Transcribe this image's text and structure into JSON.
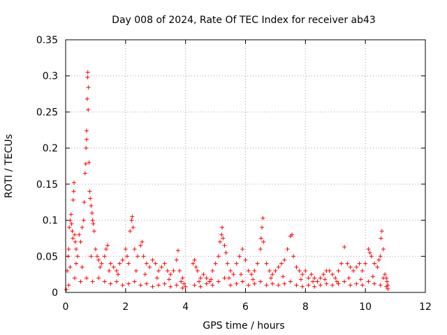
{
  "chart_data": {
    "type": "scatter",
    "title": "Day 008 of 2024, Rate Of TEC Index for receiver ab43",
    "xlabel": "GPS time / hours",
    "ylabel": "ROTI / TECUs",
    "xlim": [
      0,
      12
    ],
    "ylim": [
      0,
      0.35
    ],
    "grid": true,
    "marker": "+",
    "color": "#ff0000",
    "xticks": [
      {
        "value": 0,
        "label": "0"
      },
      {
        "value": 2,
        "label": "2"
      },
      {
        "value": 4,
        "label": "4"
      },
      {
        "value": 6,
        "label": "6"
      },
      {
        "value": 8,
        "label": "8"
      },
      {
        "value": 10,
        "label": "10"
      },
      {
        "value": 12,
        "label": "12"
      }
    ],
    "yticks": [
      {
        "value": 0,
        "label": "0"
      },
      {
        "value": 0.05,
        "label": "0.05"
      },
      {
        "value": 0.1,
        "label": "0.1"
      },
      {
        "value": 0.15,
        "label": "0.15"
      },
      {
        "value": 0.2,
        "label": "0.2"
      },
      {
        "value": 0.25,
        "label": "0.25"
      },
      {
        "value": 0.3,
        "label": "0.3"
      },
      {
        "value": 0.35,
        "label": "0.35"
      }
    ],
    "series": [
      {
        "name": "ROTI",
        "points": [
          [
            0.02,
            0.004
          ],
          [
            0.05,
            0.03
          ],
          [
            0.08,
            0.05
          ],
          [
            0.1,
            0.06
          ],
          [
            0.12,
            0.09
          ],
          [
            0.15,
            0.1
          ],
          [
            0.18,
            0.108
          ],
          [
            0.2,
            0.095
          ],
          [
            0.22,
            0.085
          ],
          [
            0.24,
            0.075
          ],
          [
            0.25,
            0.128
          ],
          [
            0.27,
            0.14
          ],
          [
            0.28,
            0.152
          ],
          [
            0.3,
            0.08
          ],
          [
            0.32,
            0.07
          ],
          [
            0.35,
            0.06
          ],
          [
            0.4,
            0.05
          ],
          [
            0.45,
            0.08
          ],
          [
            0.5,
            0.07
          ],
          [
            0.55,
            0.09
          ],
          [
            0.6,
            0.1
          ],
          [
            0.62,
            0.125
          ],
          [
            0.65,
            0.165
          ],
          [
            0.67,
            0.178
          ],
          [
            0.68,
            0.2
          ],
          [
            0.7,
            0.212
          ],
          [
            0.7,
            0.224
          ],
          [
            0.72,
            0.268
          ],
          [
            0.73,
            0.298
          ],
          [
            0.74,
            0.305
          ],
          [
            0.75,
            0.253
          ],
          [
            0.76,
            0.284
          ],
          [
            0.78,
            0.18
          ],
          [
            0.8,
            0.14
          ],
          [
            0.82,
            0.13
          ],
          [
            0.85,
            0.12
          ],
          [
            0.88,
            0.11
          ],
          [
            0.9,
            0.1
          ],
          [
            0.92,
            0.095
          ],
          [
            0.95,
            0.085
          ],
          [
            1.0,
            0.06
          ],
          [
            1.05,
            0.05
          ],
          [
            1.1,
            0.045
          ],
          [
            1.2,
            0.04
          ],
          [
            1.3,
            0.05
          ],
          [
            1.35,
            0.06
          ],
          [
            1.4,
            0.065
          ],
          [
            1.5,
            0.04
          ],
          [
            1.6,
            0.035
          ],
          [
            1.7,
            0.03
          ],
          [
            1.8,
            0.04
          ],
          [
            1.9,
            0.045
          ],
          [
            2.0,
            0.06
          ],
          [
            2.05,
            0.05
          ],
          [
            2.1,
            0.04
          ],
          [
            2.15,
            0.085
          ],
          [
            2.2,
            0.1
          ],
          [
            2.22,
            0.105
          ],
          [
            2.25,
            0.09
          ],
          [
            2.3,
            0.06
          ],
          [
            2.4,
            0.05
          ],
          [
            2.5,
            0.065
          ],
          [
            2.55,
            0.07
          ],
          [
            2.6,
            0.05
          ],
          [
            2.7,
            0.04
          ],
          [
            2.8,
            0.035
          ],
          [
            2.9,
            0.045
          ],
          [
            3.0,
            0.04
          ],
          [
            3.1,
            0.03
          ],
          [
            3.2,
            0.035
          ],
          [
            3.3,
            0.04
          ],
          [
            3.4,
            0.03
          ],
          [
            3.5,
            0.025
          ],
          [
            3.6,
            0.03
          ],
          [
            3.7,
            0.045
          ],
          [
            3.75,
            0.058
          ],
          [
            3.8,
            0.03
          ],
          [
            3.9,
            0.02
          ],
          [
            3.95,
            0.012
          ],
          [
            4.0,
            0.008
          ],
          [
            4.25,
            0.04
          ],
          [
            4.3,
            0.045
          ],
          [
            4.35,
            0.035
          ],
          [
            4.4,
            0.03
          ],
          [
            4.5,
            0.02
          ],
          [
            4.6,
            0.025
          ],
          [
            4.7,
            0.02
          ],
          [
            4.8,
            0.015
          ],
          [
            4.9,
            0.03
          ],
          [
            5.0,
            0.04
          ],
          [
            5.1,
            0.05
          ],
          [
            5.15,
            0.07
          ],
          [
            5.2,
            0.08
          ],
          [
            5.22,
            0.09
          ],
          [
            5.25,
            0.075
          ],
          [
            5.3,
            0.065
          ],
          [
            5.35,
            0.055
          ],
          [
            5.4,
            0.04
          ],
          [
            5.5,
            0.03
          ],
          [
            5.6,
            0.025
          ],
          [
            5.7,
            0.04
          ],
          [
            5.8,
            0.05
          ],
          [
            5.9,
            0.06
          ],
          [
            6.0,
            0.045
          ],
          [
            6.1,
            0.03
          ],
          [
            6.2,
            0.025
          ],
          [
            6.3,
            0.03
          ],
          [
            6.4,
            0.04
          ],
          [
            6.5,
            0.06
          ],
          [
            6.52,
            0.075
          ],
          [
            6.55,
            0.09
          ],
          [
            6.58,
            0.103
          ],
          [
            6.6,
            0.07
          ],
          [
            6.7,
            0.04
          ],
          [
            6.8,
            0.03
          ],
          [
            6.9,
            0.025
          ],
          [
            7.0,
            0.03
          ],
          [
            7.1,
            0.035
          ],
          [
            7.2,
            0.04
          ],
          [
            7.3,
            0.045
          ],
          [
            7.4,
            0.06
          ],
          [
            7.5,
            0.078
          ],
          [
            7.55,
            0.08
          ],
          [
            7.6,
            0.05
          ],
          [
            7.7,
            0.035
          ],
          [
            7.8,
            0.03
          ],
          [
            7.9,
            0.025
          ],
          [
            8.0,
            0.03
          ],
          [
            8.1,
            0.02
          ],
          [
            8.2,
            0.025
          ],
          [
            8.3,
            0.02
          ],
          [
            8.4,
            0.015
          ],
          [
            8.5,
            0.02
          ],
          [
            8.6,
            0.025
          ],
          [
            8.7,
            0.03
          ],
          [
            8.8,
            0.03
          ],
          [
            8.9,
            0.025
          ],
          [
            9.0,
            0.02
          ],
          [
            9.1,
            0.03
          ],
          [
            9.2,
            0.04
          ],
          [
            9.3,
            0.063
          ],
          [
            9.4,
            0.04
          ],
          [
            9.5,
            0.035
          ],
          [
            9.6,
            0.03
          ],
          [
            9.7,
            0.035
          ],
          [
            9.8,
            0.04
          ],
          [
            9.9,
            0.03
          ],
          [
            10.0,
            0.04
          ],
          [
            10.1,
            0.06
          ],
          [
            10.15,
            0.055
          ],
          [
            10.2,
            0.05
          ],
          [
            10.3,
            0.04
          ],
          [
            10.4,
            0.035
          ],
          [
            10.45,
            0.045
          ],
          [
            10.5,
            0.05
          ],
          [
            10.52,
            0.075
          ],
          [
            10.55,
            0.085
          ],
          [
            10.6,
            0.06
          ],
          [
            10.65,
            0.025
          ],
          [
            10.7,
            0.02
          ],
          [
            10.72,
            0.015
          ],
          [
            10.75,
            0.01
          ],
          [
            10.75,
            0.005
          ],
          [
            0.1,
            0.01
          ],
          [
            0.3,
            0.02
          ],
          [
            0.5,
            0.015
          ],
          [
            0.7,
            0.02
          ],
          [
            0.9,
            0.015
          ],
          [
            1.1,
            0.02
          ],
          [
            1.3,
            0.015
          ],
          [
            1.5,
            0.012
          ],
          [
            1.7,
            0.015
          ],
          [
            1.9,
            0.01
          ],
          [
            2.1,
            0.012
          ],
          [
            2.3,
            0.015
          ],
          [
            2.5,
            0.01
          ],
          [
            2.7,
            0.012
          ],
          [
            2.9,
            0.008
          ],
          [
            3.1,
            0.01
          ],
          [
            3.3,
            0.012
          ],
          [
            3.5,
            0.008
          ],
          [
            3.7,
            0.01
          ],
          [
            3.9,
            0.006
          ],
          [
            4.3,
            0.01
          ],
          [
            4.5,
            0.008
          ],
          [
            4.7,
            0.012
          ],
          [
            4.9,
            0.01
          ],
          [
            5.1,
            0.015
          ],
          [
            5.3,
            0.02
          ],
          [
            5.5,
            0.01
          ],
          [
            5.7,
            0.012
          ],
          [
            5.9,
            0.015
          ],
          [
            6.1,
            0.01
          ],
          [
            6.3,
            0.012
          ],
          [
            6.5,
            0.015
          ],
          [
            6.7,
            0.01
          ],
          [
            6.9,
            0.012
          ],
          [
            7.1,
            0.01
          ],
          [
            7.3,
            0.012
          ],
          [
            7.5,
            0.015
          ],
          [
            7.7,
            0.01
          ],
          [
            7.9,
            0.008
          ],
          [
            8.1,
            0.01
          ],
          [
            8.3,
            0.008
          ],
          [
            8.5,
            0.01
          ],
          [
            8.7,
            0.012
          ],
          [
            8.9,
            0.01
          ],
          [
            9.1,
            0.012
          ],
          [
            9.3,
            0.015
          ],
          [
            9.5,
            0.01
          ],
          [
            9.7,
            0.012
          ],
          [
            9.9,
            0.01
          ],
          [
            10.1,
            0.015
          ],
          [
            10.3,
            0.012
          ],
          [
            10.5,
            0.01
          ],
          [
            10.7,
            0.008
          ],
          [
            0.15,
            0.035
          ],
          [
            0.35,
            0.04
          ],
          [
            0.55,
            0.035
          ],
          [
            0.85,
            0.05
          ],
          [
            1.15,
            0.035
          ],
          [
            1.45,
            0.03
          ],
          [
            1.75,
            0.025
          ],
          [
            2.35,
            0.03
          ],
          [
            2.65,
            0.025
          ],
          [
            3.05,
            0.02
          ],
          [
            3.45,
            0.018
          ],
          [
            3.85,
            0.015
          ],
          [
            4.45,
            0.015
          ],
          [
            4.85,
            0.018
          ],
          [
            5.45,
            0.02
          ],
          [
            5.85,
            0.025
          ],
          [
            6.25,
            0.018
          ],
          [
            6.85,
            0.02
          ],
          [
            7.25,
            0.022
          ],
          [
            7.85,
            0.018
          ],
          [
            8.25,
            0.015
          ],
          [
            8.65,
            0.018
          ],
          [
            9.05,
            0.015
          ],
          [
            9.45,
            0.02
          ],
          [
            9.85,
            0.018
          ],
          [
            10.25,
            0.022
          ],
          [
            10.6,
            0.02
          ]
        ]
      }
    ]
  }
}
